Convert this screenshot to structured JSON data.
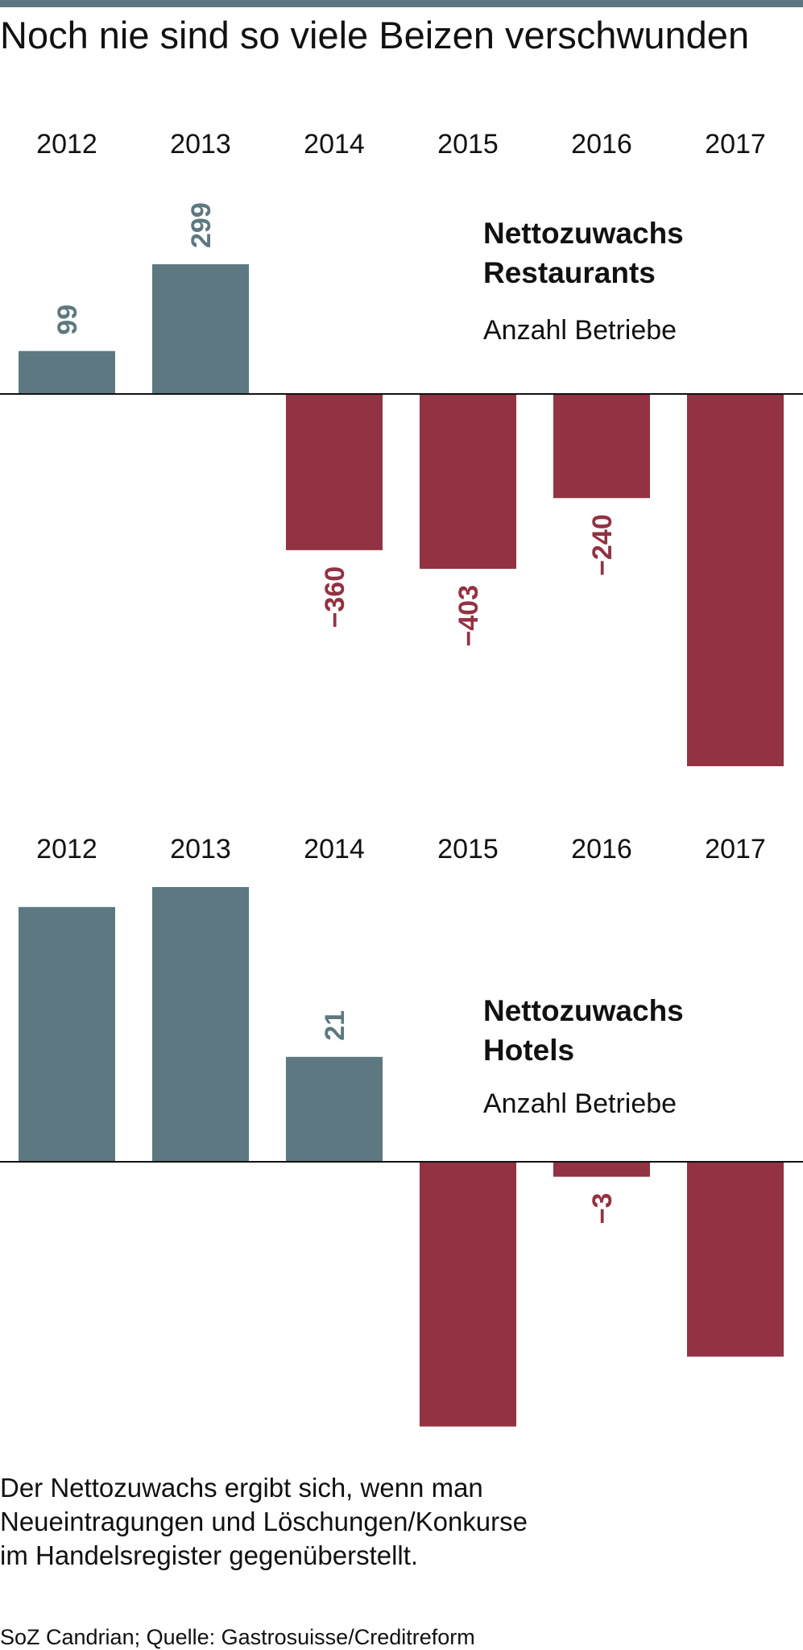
{
  "title": "Noch nie sind so viele Beizen verschwunden",
  "colors": {
    "positive": "#5d7881",
    "negative": "#923242",
    "accent_bar": "#5d7881"
  },
  "chart_data": [
    {
      "type": "bar",
      "title": "Nettozuwachs Restaurants",
      "title_lines": [
        "Nettozuwachs",
        "Restaurants"
      ],
      "subtitle": "Anzahl Betriebe",
      "categories": [
        "2012",
        "2013",
        "2014",
        "2015",
        "2016",
        "2017"
      ],
      "values": [
        99,
        299,
        -360,
        -403,
        -240,
        -858
      ],
      "data_labels": [
        "99",
        "299",
        "−360",
        "−403",
        "−240",
        ""
      ],
      "ylim": [
        -900,
        350
      ],
      "grid": false
    },
    {
      "type": "bar",
      "title": "Nettozuwachs Hotels",
      "title_lines": [
        "Nettozuwachs",
        "Hotels"
      ],
      "subtitle": "Anzahl Betriebe",
      "categories": [
        "2012",
        "2013",
        "2014",
        "2015",
        "2016",
        "2017"
      ],
      "values": [
        51,
        55,
        21,
        -53,
        -3,
        -39
      ],
      "data_labels": [
        "",
        "",
        "21",
        "",
        "−3",
        ""
      ],
      "ylim": [
        -55,
        60
      ],
      "grid": false
    }
  ],
  "note_lines": [
    "Der Nettozuwachs ergibt sich, wenn man",
    "Neueintragungen und Löschungen/Konkurse",
    "im Handelsregister gegenüberstellt."
  ],
  "source": "SoZ Candrian; Quelle: Gastrosuisse/Creditreform"
}
